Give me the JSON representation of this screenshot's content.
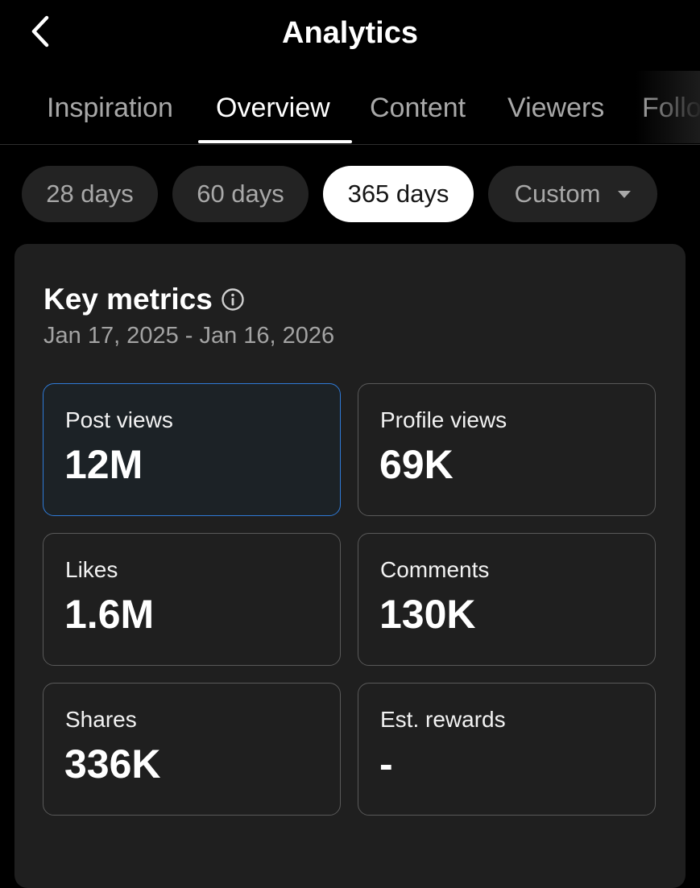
{
  "header": {
    "title": "Analytics",
    "back_icon": "chevron-left-icon"
  },
  "tabs": [
    {
      "label": "Inspiration",
      "active": false
    },
    {
      "label": "Overview",
      "active": true
    },
    {
      "label": "Content",
      "active": false
    },
    {
      "label": "Viewers",
      "active": false
    },
    {
      "label": "Follo",
      "active": false
    }
  ],
  "date_filters": [
    {
      "label": "28 days",
      "active": false
    },
    {
      "label": "60 days",
      "active": false
    },
    {
      "label": "365 days",
      "active": true
    },
    {
      "label": "Custom",
      "active": false,
      "dropdown": true
    }
  ],
  "key_metrics": {
    "title": "Key metrics",
    "info_icon": "info-icon",
    "date_range": "Jan 17, 2025 - Jan 16, 2026",
    "metrics": [
      {
        "label": "Post views",
        "value": "12M",
        "selected": true
      },
      {
        "label": "Profile views",
        "value": "69K",
        "selected": false
      },
      {
        "label": "Likes",
        "value": "1.6M",
        "selected": false
      },
      {
        "label": "Comments",
        "value": "130K",
        "selected": false
      },
      {
        "label": "Shares",
        "value": "336K",
        "selected": false
      },
      {
        "label": "Est. rewards",
        "value": "-",
        "selected": false
      }
    ]
  },
  "colors": {
    "background": "#000000",
    "card": "#1f1f1f",
    "chip": "#232323",
    "selected_border": "#2f7ad6",
    "muted_text": "#a8a8a8"
  }
}
